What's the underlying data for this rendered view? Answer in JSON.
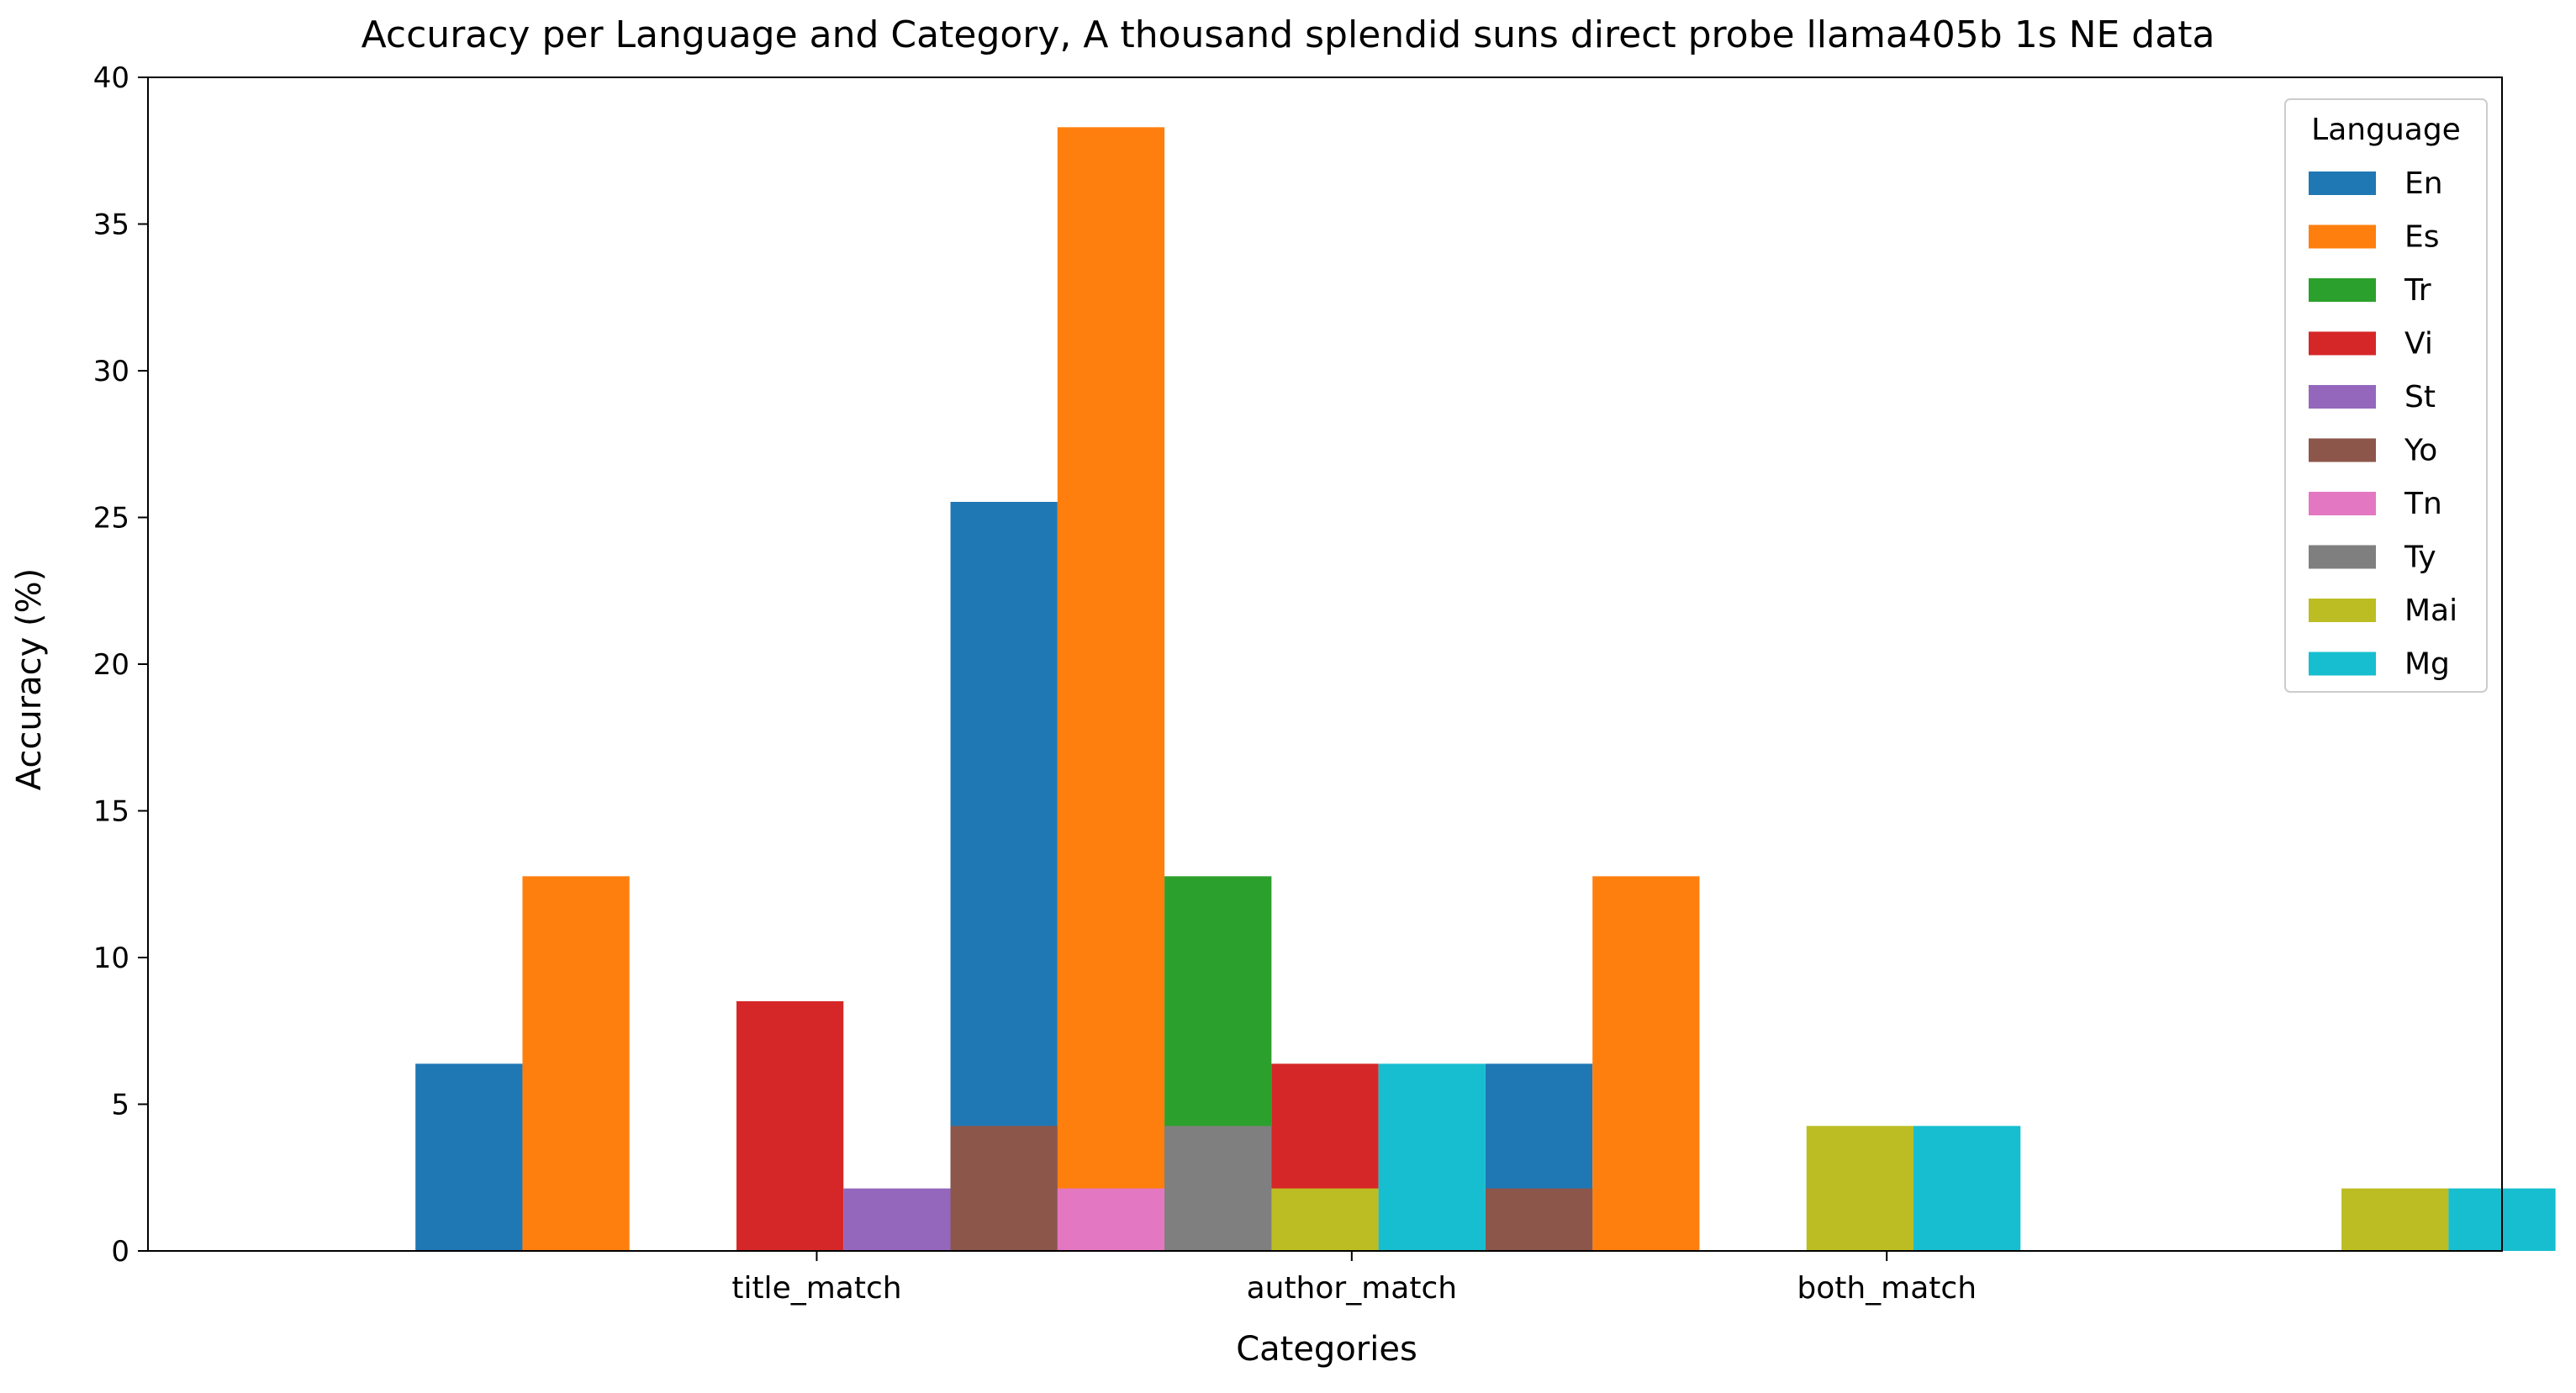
{
  "chart_data": {
    "type": "bar",
    "title": "Accuracy per Language and Category, A thousand splendid suns direct probe llama405b 1s NE data",
    "xlabel": "Categories",
    "ylabel": "Accuracy (%)",
    "ylim": [
      0,
      40
    ],
    "yticks": [
      0,
      5,
      10,
      15,
      20,
      25,
      30,
      35,
      40
    ],
    "tick_labels": [
      "title_match",
      "author_match",
      "both_match"
    ],
    "grid": false,
    "legend": {
      "title": "Language",
      "position": "top-right"
    },
    "series": [
      {
        "name": "En",
        "color": "#1f77b4",
        "values": [
          6.38,
          25.53,
          6.38
        ]
      },
      {
        "name": "Es",
        "color": "#ff7f0e",
        "values": [
          12.77,
          38.3,
          12.77
        ]
      },
      {
        "name": "Tr",
        "color": "#2ca02c",
        "values": [
          0,
          12.77,
          0
        ]
      },
      {
        "name": "Vi",
        "color": "#d62728",
        "values": [
          8.51,
          6.38,
          0
        ]
      },
      {
        "name": "St",
        "color": "#9467bd",
        "values": [
          2.13,
          0,
          0
        ]
      },
      {
        "name": "Yo",
        "color": "#8c564b",
        "values": [
          4.26,
          2.13,
          0
        ]
      },
      {
        "name": "Tn",
        "color": "#e377c2",
        "values": [
          2.13,
          0,
          0
        ]
      },
      {
        "name": "Ty",
        "color": "#7f7f7f",
        "values": [
          4.26,
          0,
          0
        ]
      },
      {
        "name": "Mai",
        "color": "#bcbd22",
        "values": [
          2.13,
          4.26,
          2.13
        ]
      },
      {
        "name": "Mg",
        "color": "#17becf",
        "values": [
          6.38,
          4.26,
          2.13
        ]
      }
    ]
  }
}
